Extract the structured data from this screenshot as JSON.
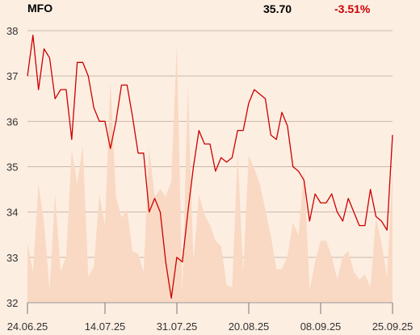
{
  "header": {
    "ticker": "MFO",
    "price": "35.70",
    "change": "-3.51%",
    "change_color": "#cc0000"
  },
  "chart_data": {
    "type": "line",
    "title": "",
    "xlabel": "",
    "ylabel": "",
    "ylim": [
      32,
      38
    ],
    "yticks": [
      32,
      33,
      34,
      35,
      36,
      37,
      38
    ],
    "xtick_labels": [
      "24.06.25",
      "14.07.25",
      "31.07.25",
      "20.08.25",
      "08.09.25",
      "25.09.25"
    ],
    "grid": true,
    "line_color": "#cc0000",
    "volume_color": "#f9d9c3",
    "series": [
      {
        "values": [
          37.0,
          37.9,
          36.7,
          37.6,
          37.4,
          36.5,
          36.7,
          36.7,
          35.6,
          37.3,
          37.3,
          37.0,
          36.3,
          36.0,
          36.0,
          35.4,
          36.0,
          36.8,
          36.8,
          36.1,
          35.3,
          35.3,
          34.0,
          34.3,
          34.0,
          32.9,
          32.1,
          33.0,
          32.9,
          34.0,
          35.0,
          35.8,
          35.5,
          35.5,
          34.9,
          35.2,
          35.1,
          35.2,
          35.8,
          35.8,
          36.4,
          36.7,
          36.6,
          36.5,
          35.7,
          35.6,
          36.2,
          35.9,
          35.0,
          34.9,
          34.7,
          33.8,
          34.4,
          34.2,
          34.2,
          34.4,
          34.0,
          33.8,
          34.3,
          34.0,
          33.7,
          33.7,
          34.5,
          33.9,
          33.8,
          33.6,
          35.7
        ]
      }
    ],
    "volume": [
      0.23,
      0.12,
      0.46,
      0.31,
      0.05,
      0.42,
      0.12,
      0.18,
      0.59,
      0.46,
      0.61,
      0.1,
      0.14,
      0.42,
      0.3,
      0.86,
      0.41,
      0.33,
      0.36,
      0.2,
      0.19,
      0.12,
      0.6,
      0.41,
      0.44,
      0.41,
      0.47,
      1.0,
      0.04,
      0.84,
      0.16,
      0.42,
      0.34,
      0.3,
      0.24,
      0.22,
      0.07,
      0.06,
      0.58,
      0.12,
      0.57,
      0.52,
      0.46,
      0.36,
      0.26,
      0.13,
      0.13,
      0.18,
      0.31,
      0.26,
      0.52,
      0.05,
      0.16,
      0.24,
      0.24,
      0.18,
      0.09,
      0.18,
      0.2,
      0.12,
      0.09,
      0.11,
      0.06,
      0.33,
      0.23,
      0.1,
      0.52
    ]
  }
}
